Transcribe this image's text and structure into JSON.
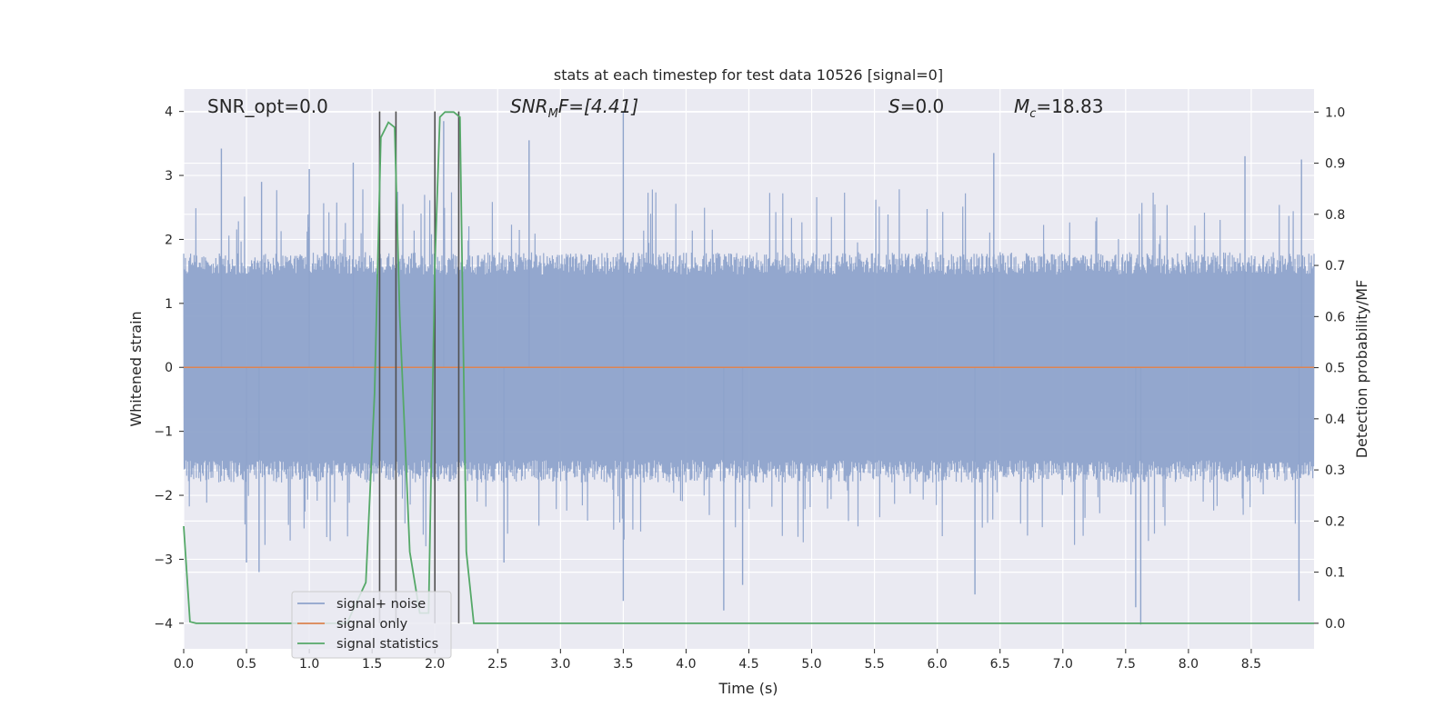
{
  "chart_data": {
    "type": "line",
    "title": "stats at each timestep for test data 10526 [signal=0]",
    "xlabel": "Time (s)",
    "ylabel": "Whitened strain",
    "ylabel_right": "Detection probability/MF",
    "xlim": [
      0.0,
      9.0
    ],
    "ylim": [
      -4.4,
      4.35
    ],
    "ylim_right": [
      -0.05,
      1.045
    ],
    "x_ticks": [
      0.0,
      0.5,
      1.0,
      1.5,
      2.0,
      2.5,
      3.0,
      3.5,
      4.0,
      4.5,
      5.0,
      5.5,
      6.0,
      6.5,
      7.0,
      7.5,
      8.0,
      8.5
    ],
    "x_tick_labels": [
      "0.0",
      "0.5",
      "1.0",
      "1.5",
      "2.0",
      "2.5",
      "3.0",
      "3.5",
      "4.0",
      "4.5",
      "5.0",
      "5.5",
      "6.0",
      "6.5",
      "7.0",
      "7.5",
      "8.0",
      "8.5"
    ],
    "y_ticks": [
      4,
      3,
      2,
      1,
      0,
      -1,
      -2,
      -3,
      -4
    ],
    "y_tick_labels": [
      "4",
      "3",
      "2",
      "1",
      "0",
      "−1",
      "−2",
      "−3",
      "−4"
    ],
    "y_right_ticks": [
      1.0,
      0.9,
      0.8,
      0.7,
      0.6,
      0.5,
      0.4,
      0.3,
      0.2,
      0.1,
      0.0
    ],
    "y_right_tick_labels": [
      "1.0",
      "0.9",
      "0.8",
      "0.7",
      "0.6",
      "0.5",
      "0.4",
      "0.3",
      "0.2",
      "0.1",
      "0.0"
    ],
    "grid": true,
    "legend_placement": "lower-left",
    "annotations": {
      "snr_opt": "SNR_opt=0.0",
      "snr_mf_label": "SNR",
      "snr_mf_sub": "M",
      "snr_mf_rest": "F=[4.41]",
      "s_label": "S",
      "s_rest": "=0.0",
      "mc_label": "M",
      "mc_sub": "c",
      "mc_rest": "=18.83"
    },
    "series": [
      {
        "name": "signal+ noise",
        "color": "#8ea3cb",
        "description_band": "dense noise band, typical range -1.6 to 1.6 with spikes",
        "spikes": [
          {
            "x": 0.3,
            "y": 3.42
          },
          {
            "x": 0.62,
            "y": 2.9
          },
          {
            "x": 1.0,
            "y": 3.1
          },
          {
            "x": 1.35,
            "y": 3.2
          },
          {
            "x": 2.07,
            "y": 3.85
          },
          {
            "x": 2.75,
            "y": 3.55
          },
          {
            "x": 3.5,
            "y": 3.98
          },
          {
            "x": 6.45,
            "y": 3.35
          },
          {
            "x": 8.45,
            "y": 3.3
          },
          {
            "x": 8.9,
            "y": 3.25
          },
          {
            "x": 0.5,
            "y": -3.05
          },
          {
            "x": 0.6,
            "y": -3.2
          },
          {
            "x": 2.55,
            "y": -3.05
          },
          {
            "x": 3.5,
            "y": -3.65
          },
          {
            "x": 4.3,
            "y": -3.8
          },
          {
            "x": 4.45,
            "y": -3.4
          },
          {
            "x": 6.3,
            "y": -3.55
          },
          {
            "x": 7.58,
            "y": -3.75
          },
          {
            "x": 7.62,
            "y": -4.02
          },
          {
            "x": 8.88,
            "y": -3.65
          }
        ]
      },
      {
        "name": "signal only",
        "color": "#dd8452",
        "values_y": 0.0
      },
      {
        "name": "signal statistics",
        "color": "#55a868",
        "axis": "right",
        "x": [
          0.0,
          0.05,
          0.1,
          0.2,
          1.3,
          1.45,
          1.52,
          1.57,
          1.63,
          1.68,
          1.72,
          1.8,
          1.88,
          1.95,
          2.0,
          2.04,
          2.08,
          2.15,
          2.2,
          2.25,
          2.31,
          2.4,
          9.0
        ],
        "y": [
          0.19,
          0.003,
          0.0,
          0.0,
          0.0,
          0.08,
          0.45,
          0.95,
          0.98,
          0.97,
          0.6,
          0.14,
          0.02,
          0.02,
          0.7,
          0.99,
          1.0,
          1.0,
          0.99,
          0.14,
          0.0,
          0.0,
          0.0
        ]
      }
    ],
    "vertical_lines": [
      1.56,
      1.69,
      2.0,
      2.19
    ],
    "vertical_line_range": [
      -4.0,
      4.0
    ],
    "vertical_line_color": "#505050"
  }
}
